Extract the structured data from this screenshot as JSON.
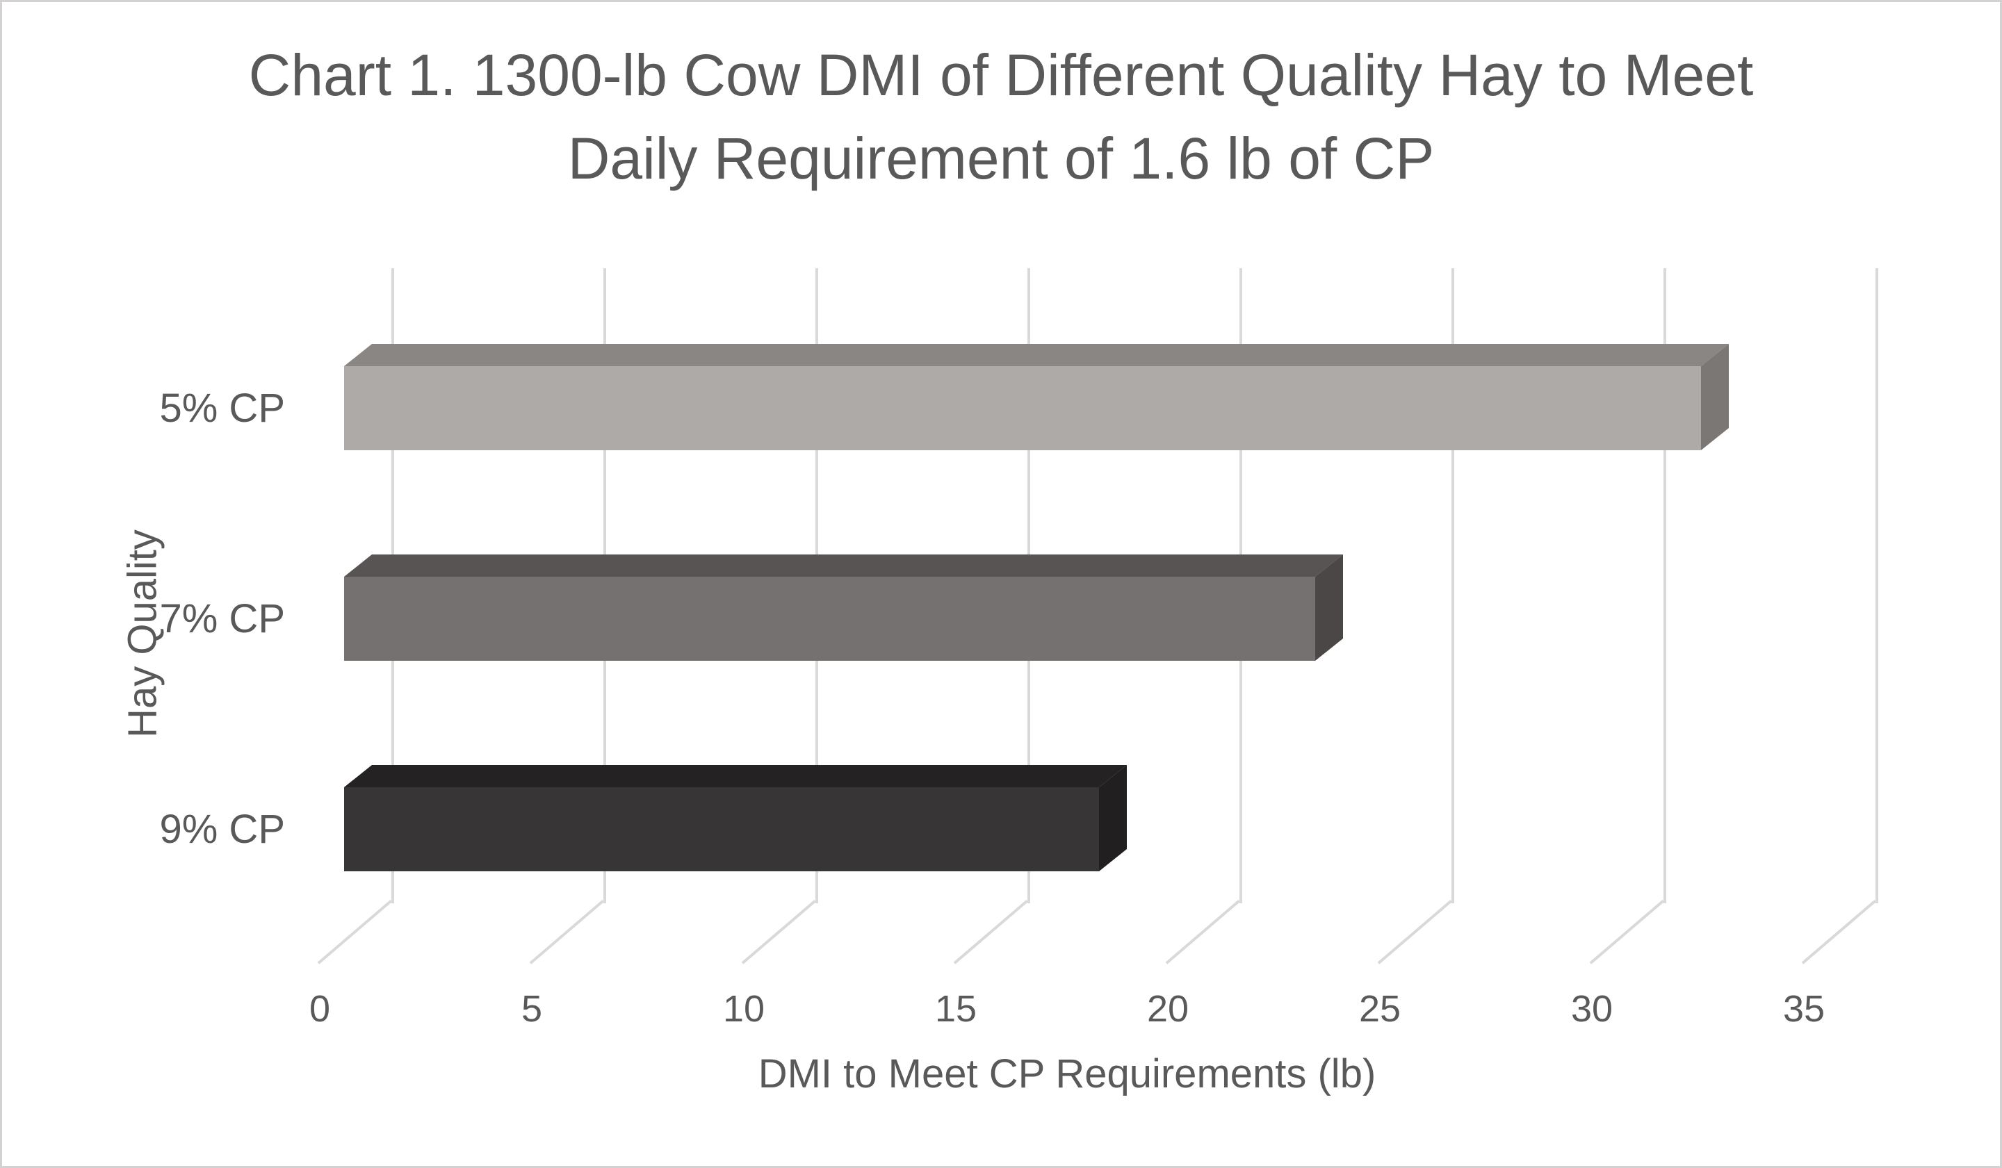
{
  "chart_data": {
    "type": "bar",
    "orientation": "horizontal",
    "style": "3d",
    "title": "Chart 1. 1300-lb Cow DMI of Different Quality Hay to Meet Daily Requirement of 1.6 lb of CP",
    "title_lines": [
      "Chart 1. 1300-lb Cow DMI of Different Quality Hay to Meet",
      "Daily Requirement of 1.6 lb of CP"
    ],
    "categories": [
      "5% CP",
      "7% CP",
      "9% CP"
    ],
    "values": [
      32,
      22.9,
      17.8
    ],
    "xlabel": "DMI to Meet CP Requirements (lb)",
    "ylabel": "Hay Quality",
    "xlim": [
      0,
      35
    ],
    "x_ticks": [
      0,
      5,
      10,
      15,
      20,
      25,
      30,
      35
    ],
    "grid": true,
    "legend_position": "none",
    "text_color": "#595959",
    "gridline_color": "#d9d9d9",
    "bar_colors": [
      {
        "front": "#aeaaa8",
        "top": "#8a8683",
        "side": "#7b7775"
      },
      {
        "front": "#757170",
        "top": "#575453",
        "side": "#4b4747"
      },
      {
        "front": "#383536",
        "top": "#252223",
        "side": "#211f20"
      }
    ]
  }
}
